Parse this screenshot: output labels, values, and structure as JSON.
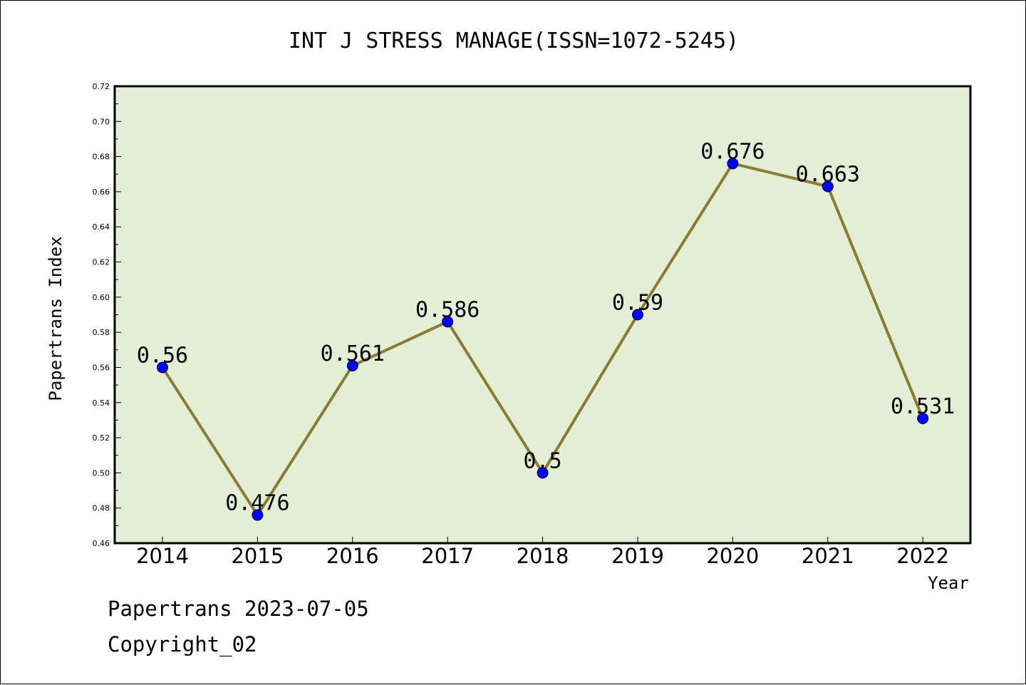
{
  "chart_data": {
    "type": "line",
    "title": "INT J STRESS MANAGE(ISSN=1072-5245)",
    "xlabel": "Year",
    "ylabel": "Papertrans Index",
    "categories": [
      "2014",
      "2015",
      "2016",
      "2017",
      "2018",
      "2019",
      "2020",
      "2021",
      "2022"
    ],
    "series": [
      {
        "values": [
          0.56,
          0.476,
          0.561,
          0.586,
          0.5,
          0.59,
          0.676,
          0.663,
          0.531
        ],
        "labels": [
          "0.56",
          "0.476",
          "0.561",
          "0.586",
          "0.5",
          "0.59",
          "0.676",
          "0.663",
          "0.531"
        ]
      }
    ],
    "ylim": [
      0.46,
      0.72
    ],
    "yticks": [
      "0.46",
      "0.48",
      "0.50",
      "0.52",
      "0.54",
      "0.56",
      "0.58",
      "0.60",
      "0.62",
      "0.64",
      "0.66",
      "0.68",
      "0.70",
      "0.72"
    ],
    "grid": false,
    "colors": {
      "plot_background": "#e2efd5",
      "line": "#8b7a32",
      "marker": "#0000ff"
    }
  },
  "footer": {
    "line1": "Papertrans 2023-07-05",
    "line2": "Copyright_02"
  }
}
